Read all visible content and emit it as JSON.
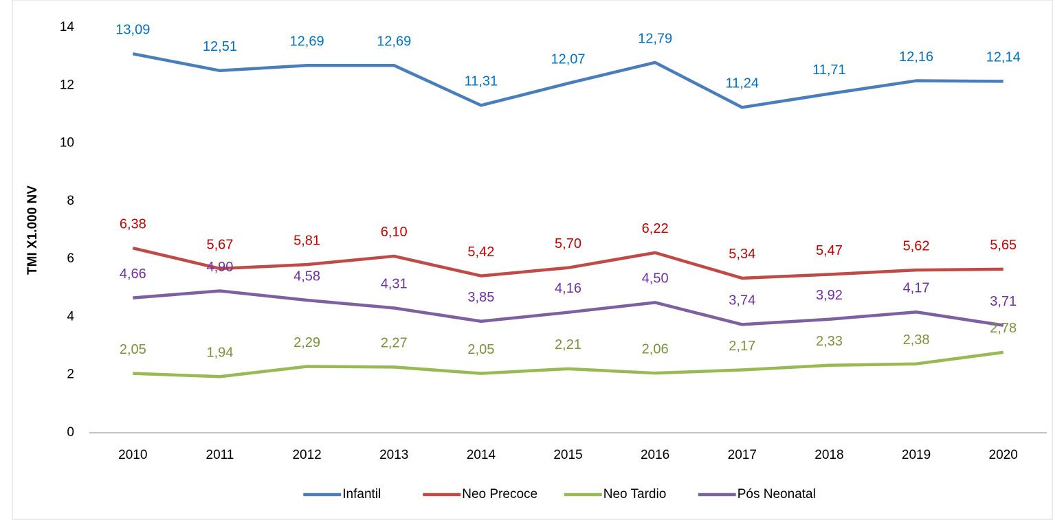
{
  "chart_data": {
    "type": "line",
    "y_label": "TMI X1.000 NV",
    "categories": [
      "2010",
      "2011",
      "2012",
      "2013",
      "2014",
      "2015",
      "2016",
      "2017",
      "2018",
      "2019",
      "2020"
    ],
    "series": [
      {
        "name": "Infantil",
        "color": "#4a7ebb",
        "label_color": "#0070c0",
        "values": [
          13.09,
          12.51,
          12.69,
          12.69,
          11.31,
          12.07,
          12.79,
          11.24,
          11.71,
          12.16,
          12.14
        ],
        "value_labels": [
          "13,09",
          "12,51",
          "12,69",
          "12,69",
          "11,31",
          "12,07",
          "12,79",
          "11,24",
          "11,71",
          "12,16",
          "12,14"
        ]
      },
      {
        "name": "Neo Precoce",
        "color": "#be4b48",
        "label_color": "#c00000",
        "values": [
          6.38,
          5.67,
          5.81,
          6.1,
          5.42,
          5.7,
          6.22,
          5.34,
          5.47,
          5.62,
          5.65
        ],
        "value_labels": [
          "6,38",
          "5,67",
          "5,81",
          "6,10",
          "5,42",
          "5,70",
          "6,22",
          "5,34",
          "5,47",
          "5,62",
          "5,65"
        ]
      },
      {
        "name": "Neo Tardio",
        "color": "#98b954",
        "label_color": "#77933c",
        "values": [
          2.05,
          1.94,
          2.29,
          2.27,
          2.05,
          2.21,
          2.06,
          2.17,
          2.33,
          2.38,
          2.78
        ],
        "value_labels": [
          "2,05",
          "1,94",
          "2,29",
          "2,27",
          "2,05",
          "2,21",
          "2,06",
          "2,17",
          "2,33",
          "2,38",
          "2,78"
        ]
      },
      {
        "name": "Pós Neonatal",
        "color": "#7d60a0",
        "label_color": "#7030a0",
        "values": [
          4.66,
          4.9,
          4.58,
          4.31,
          3.85,
          4.16,
          4.5,
          3.74,
          3.92,
          4.17,
          3.71
        ],
        "value_labels": [
          "4,66",
          "4,90",
          "4,58",
          "4,31",
          "3,85",
          "4,16",
          "4,50",
          "3,74",
          "3,92",
          "4,17",
          "3,71"
        ]
      }
    ],
    "ylim": [
      0,
      14
    ],
    "yticks": [
      0,
      2,
      4,
      6,
      8,
      10,
      12,
      14
    ],
    "grid": false,
    "legend": "bottom"
  }
}
